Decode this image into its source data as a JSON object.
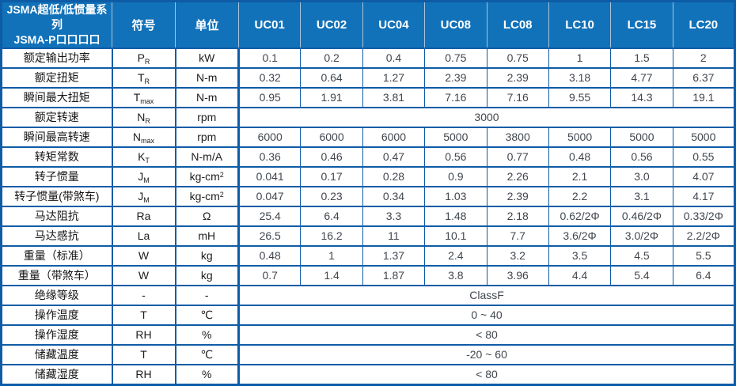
{
  "colors": {
    "header_bg": "#1272b9",
    "header_text": "#ffffff",
    "border": "#0e5ca6"
  },
  "table": {
    "header": {
      "title_line1": "JSMA超低/低惯量系列",
      "title_line2": "JSMA-P口口口口",
      "symbol_col": "符号",
      "unit_col": "单位",
      "models": [
        "UC01",
        "UC02",
        "UC04",
        "UC08",
        "LC08",
        "LC10",
        "LC15",
        "LC20"
      ]
    },
    "rows": [
      {
        "label": "额定输出功率",
        "symbol": "P",
        "symbol_sub": "R",
        "unit": "kW",
        "values": [
          "0.1",
          "0.2",
          "0.4",
          "0.75",
          "0.75",
          "1",
          "1.5",
          "2"
        ]
      },
      {
        "label": "额定扭矩",
        "symbol": "T",
        "symbol_sub": "R",
        "unit": "N-m",
        "values": [
          "0.32",
          "0.64",
          "1.27",
          "2.39",
          "2.39",
          "3.18",
          "4.77",
          "6.37"
        ]
      },
      {
        "label": "瞬间最大扭矩",
        "symbol": "T",
        "symbol_sub": "max",
        "unit": "N-m",
        "values": [
          "0.95",
          "1.91",
          "3.81",
          "7.16",
          "7.16",
          "9.55",
          "14.3",
          "19.1"
        ]
      },
      {
        "label": "额定转速",
        "symbol": "N",
        "symbol_sub": "R",
        "unit": "rpm",
        "merged": "3000"
      },
      {
        "label": "瞬间最高转速",
        "symbol": "N",
        "symbol_sub": "max",
        "unit": "rpm",
        "values": [
          "6000",
          "6000",
          "6000",
          "5000",
          "3800",
          "5000",
          "5000",
          "5000"
        ]
      },
      {
        "label": "转矩常数",
        "symbol": "K",
        "symbol_sub": "T",
        "unit": "N-m/A",
        "values": [
          "0.36",
          "0.46",
          "0.47",
          "0.56",
          "0.77",
          "0.48",
          "0.56",
          "0.55"
        ]
      },
      {
        "label": "转子惯量",
        "symbol": "J",
        "symbol_sub": "M",
        "unit": "kg-cm",
        "unit_sup": "2",
        "values": [
          "0.041",
          "0.17",
          "0.28",
          "0.9",
          "2.26",
          "2.1",
          "3.0",
          "4.07"
        ]
      },
      {
        "label": "转子惯量(带煞车)",
        "symbol": "J",
        "symbol_sub": "M",
        "unit": "kg-cm",
        "unit_sup": "2",
        "values": [
          "0.047",
          "0.23",
          "0.34",
          "1.03",
          "2.39",
          "2.2",
          "3.1",
          "4.17"
        ]
      },
      {
        "label": "马达阻抗",
        "symbol": "Ra",
        "unit": "Ω",
        "values": [
          "25.4",
          "6.4",
          "3.3",
          "1.48",
          "2.18",
          "0.62/2Φ",
          "0.46/2Φ",
          "0.33/2Φ"
        ]
      },
      {
        "label": "马达感抗",
        "symbol": "La",
        "unit": "mH",
        "values": [
          "26.5",
          "16.2",
          "11",
          "10.1",
          "7.7",
          "3.6/2Φ",
          "3.0/2Φ",
          "2.2/2Φ"
        ]
      },
      {
        "label": "重量（标准）",
        "symbol": "W",
        "unit": "kg",
        "values": [
          "0.48",
          "1",
          "1.37",
          "2.4",
          "3.2",
          "3.5",
          "4.5",
          "5.5"
        ]
      },
      {
        "label": "重量（带煞车）",
        "symbol": "W",
        "unit": "kg",
        "values": [
          "0.7",
          "1.4",
          "1.87",
          "3.8",
          "3.96",
          "4.4",
          "5.4",
          "6.4"
        ]
      },
      {
        "label": "绝缘等级",
        "symbol": "-",
        "unit": "-",
        "merged": "ClassF"
      },
      {
        "label": "操作温度",
        "symbol": "T",
        "unit": "℃",
        "merged": "0 ~ 40"
      },
      {
        "label": "操作湿度",
        "symbol": "RH",
        "unit": "%",
        "merged": "< 80"
      },
      {
        "label": "储藏温度",
        "symbol": "T",
        "unit": "℃",
        "merged": "-20 ~ 60"
      },
      {
        "label": "储藏湿度",
        "symbol": "RH",
        "unit": "%",
        "merged": "< 80"
      }
    ]
  }
}
